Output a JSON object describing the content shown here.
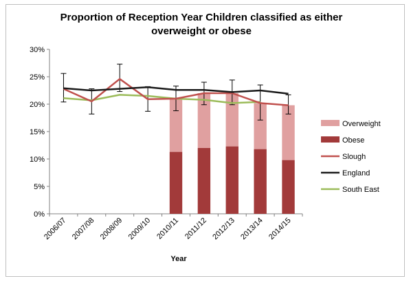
{
  "chart_data": {
    "type": "bar",
    "title": "Proportion of Reception Year Children classified as either overweight or obese",
    "xlabel": "Year",
    "ylabel": "",
    "ylim": [
      0,
      30
    ],
    "y_ticks": [
      "0%",
      "5%",
      "10%",
      "15%",
      "20%",
      "25%",
      "30%"
    ],
    "categories": [
      "2006/07",
      "2007/08",
      "2008/09",
      "2009/10",
      "2010/11",
      "2011/12",
      "2012/13",
      "2013/14",
      "2014/15"
    ],
    "bars_stacked": [
      {
        "name": "Obese",
        "color": "#a23a3a",
        "values": [
          null,
          null,
          null,
          null,
          11.3,
          12.0,
          12.3,
          11.8,
          9.8
        ]
      },
      {
        "name": "Overweight",
        "color": "#e0a0a0",
        "values": [
          null,
          null,
          null,
          null,
          9.7,
          10.0,
          9.7,
          8.4,
          10.0
        ]
      }
    ],
    "series": [
      {
        "name": "Slough",
        "type": "line",
        "color": "#c0504d",
        "values": [
          22.8,
          20.5,
          24.6,
          20.9,
          21.0,
          22.0,
          22.0,
          20.2,
          19.8
        ],
        "error_low": [
          20.4,
          18.2,
          22.3,
          18.7,
          18.8,
          19.9,
          19.9,
          17.1,
          18.2
        ],
        "error_high": [
          25.6,
          22.8,
          27.3,
          23.2,
          23.3,
          24.0,
          24.4,
          23.5,
          21.7
        ]
      },
      {
        "name": "England",
        "type": "line",
        "color": "#1a1a1a",
        "values": [
          22.9,
          22.5,
          22.8,
          23.1,
          22.6,
          22.6,
          22.2,
          22.5,
          21.9
        ]
      },
      {
        "name": "South East",
        "type": "line",
        "color": "#9bbb59",
        "values": [
          21.1,
          20.7,
          21.7,
          21.5,
          21.0,
          20.8,
          20.2,
          20.4,
          null
        ]
      }
    ],
    "legend": [
      "Overweight",
      "Obese",
      "Slough",
      "England",
      "South East"
    ],
    "legend_position": "right",
    "grid": false
  }
}
